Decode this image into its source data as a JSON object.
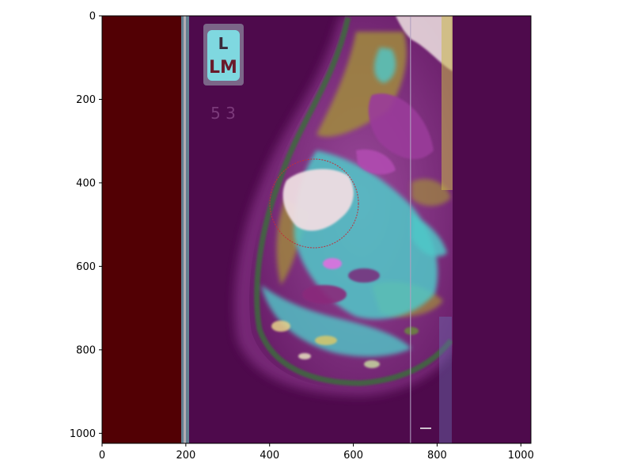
{
  "figure": {
    "image_description_icon": "mammogram-overlay",
    "x_axis": {
      "ticks": [
        "0",
        "200",
        "400",
        "600",
        "800",
        "1000"
      ],
      "values": [
        0,
        200,
        400,
        600,
        800,
        1000
      ],
      "range": [
        0,
        1024
      ]
    },
    "y_axis": {
      "ticks": [
        "0",
        "200",
        "400",
        "600",
        "800",
        "1000"
      ],
      "values": [
        0,
        200,
        400,
        600,
        800,
        1000
      ],
      "range": [
        1024,
        0
      ]
    },
    "marker": {
      "line1": "L",
      "line2": "LM"
    },
    "faint_mark": "5 3",
    "colors": {
      "left_band": "#520004",
      "background": "#4e0a4c",
      "tissue_base": "#8a3f8a",
      "cyan": "#4fc8c8",
      "olive": "#a08a3c",
      "green": "#3c6a3c",
      "pale": "#e8d8dc",
      "magenta": "#b04ab0",
      "roi_circle": "#c0303a"
    }
  }
}
